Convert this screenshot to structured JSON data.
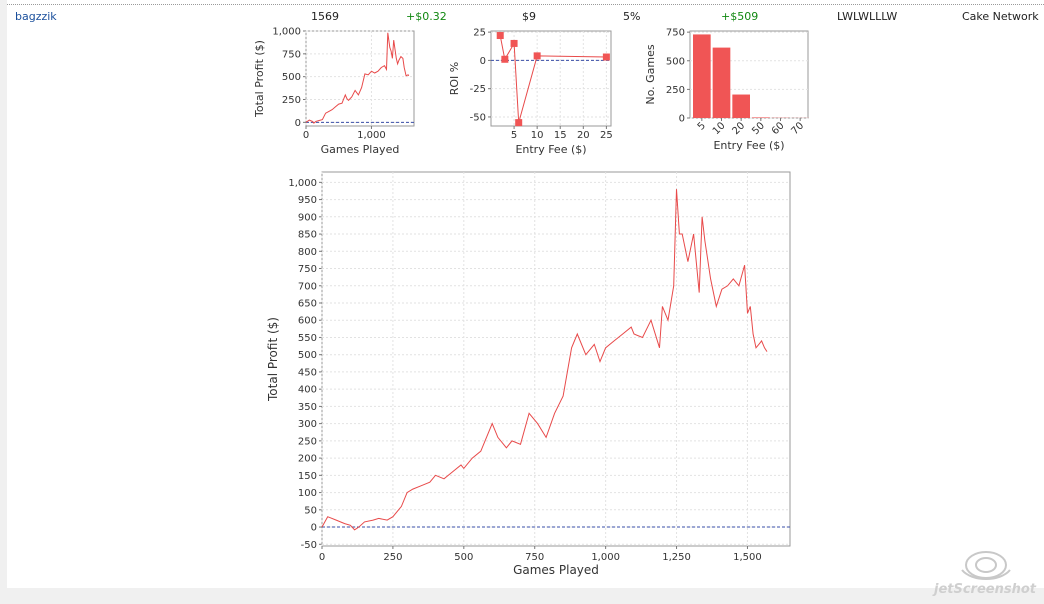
{
  "row": {
    "player": "bagzzik",
    "games": "1569",
    "avg_profit": "+$0.32",
    "avg_stake": "$9",
    "avg_roi": "5%",
    "total_profit": "+$509",
    "recent": "LWLWLLLW",
    "network": "Cake Network"
  },
  "watermark": "jetScreenshot",
  "chart_data": [
    {
      "id": "small-profit",
      "type": "line",
      "xlabel": "Games Played",
      "ylabel": "Total Profit ($)",
      "xlim": [
        0,
        1650
      ],
      "ylim": [
        -40,
        1000
      ],
      "xticks": [
        0,
        1000
      ],
      "xtick_labels": [
        "0",
        "1,000"
      ],
      "yticks": [
        0,
        250,
        500,
        750,
        1000
      ],
      "ytick_labels": [
        "0",
        "250",
        "500",
        "750",
        "1,000"
      ],
      "zero_line": 0,
      "grid": true,
      "x": [
        0,
        50,
        100,
        120,
        150,
        200,
        250,
        300,
        350,
        400,
        450,
        500,
        550,
        600,
        625,
        650,
        700,
        750,
        800,
        850,
        900,
        950,
        1000,
        1050,
        1100,
        1150,
        1200,
        1230,
        1250,
        1280,
        1300,
        1320,
        1340,
        1360,
        1380,
        1400,
        1420,
        1450,
        1480,
        1500,
        1530,
        1560,
        1569
      ],
      "y": [
        0,
        25,
        10,
        -8,
        10,
        20,
        30,
        100,
        120,
        140,
        170,
        200,
        210,
        300,
        260,
        240,
        280,
        350,
        300,
        380,
        530,
        520,
        560,
        540,
        560,
        600,
        620,
        580,
        980,
        820,
        780,
        700,
        900,
        800,
        700,
        640,
        680,
        720,
        700,
        600,
        510,
        520,
        509
      ]
    },
    {
      "id": "small-roi",
      "type": "line",
      "xlabel": "Entry Fee ($)",
      "ylabel": "ROI %",
      "xlim": [
        0,
        26
      ],
      "ylim": [
        -58,
        26
      ],
      "xticks": [
        5,
        10,
        15,
        20,
        25
      ],
      "xtick_labels": [
        "5",
        "10",
        "15",
        "20",
        "25"
      ],
      "yticks": [
        -50,
        -25,
        0,
        25
      ],
      "ytick_labels": [
        "-50",
        "-25",
        "0",
        "25"
      ],
      "zero_line": 0,
      "grid": true,
      "x": [
        2,
        3,
        5,
        6,
        10,
        25
      ],
      "y": [
        22,
        1,
        15,
        -55,
        4,
        3
      ]
    },
    {
      "id": "small-games",
      "type": "bar",
      "xlabel": "Entry Fee ($)",
      "ylabel": "No. Games",
      "categories": [
        "5",
        "10",
        "20",
        "50",
        "60",
        "70"
      ],
      "values": [
        730,
        615,
        205,
        5,
        2,
        1
      ],
      "ylim": [
        0,
        760
      ],
      "yticks": [
        0,
        250,
        500,
        750
      ],
      "ytick_labels": [
        "0",
        "250",
        "500",
        "750"
      ],
      "grid": true
    },
    {
      "id": "large-profit",
      "type": "line",
      "xlabel": "Games Played",
      "ylabel": "Total Profit ($)",
      "xlim": [
        0,
        1650
      ],
      "ylim": [
        -55,
        1030
      ],
      "xticks": [
        0,
        250,
        500,
        750,
        1000,
        1250,
        1500
      ],
      "xtick_labels": [
        "0",
        "250",
        "500",
        "750",
        "1,000",
        "1,250",
        "1,500"
      ],
      "yticks": [
        -50,
        0,
        50,
        100,
        150,
        200,
        250,
        300,
        350,
        400,
        450,
        500,
        550,
        600,
        650,
        700,
        750,
        800,
        850,
        900,
        950,
        1000
      ],
      "ytick_labels": [
        "-50",
        "0",
        "50",
        "100",
        "150",
        "200",
        "250",
        "300",
        "350",
        "400",
        "450",
        "500",
        "550",
        "600",
        "650",
        "700",
        "750",
        "800",
        "850",
        "900",
        "950",
        "1,000"
      ],
      "zero_line": 0,
      "grid": true,
      "x": [
        0,
        20,
        50,
        80,
        100,
        115,
        130,
        150,
        180,
        200,
        230,
        250,
        280,
        300,
        320,
        350,
        380,
        400,
        430,
        460,
        490,
        500,
        530,
        560,
        600,
        620,
        650,
        670,
        700,
        730,
        760,
        790,
        820,
        850,
        880,
        900,
        930,
        960,
        980,
        1000,
        1030,
        1060,
        1090,
        1100,
        1130,
        1160,
        1190,
        1200,
        1220,
        1240,
        1250,
        1260,
        1270,
        1290,
        1310,
        1330,
        1340,
        1350,
        1370,
        1390,
        1410,
        1430,
        1450,
        1470,
        1490,
        1500,
        1510,
        1520,
        1530,
        1540,
        1550,
        1560,
        1569
      ],
      "y": [
        0,
        30,
        20,
        10,
        5,
        -8,
        0,
        15,
        20,
        25,
        20,
        30,
        60,
        100,
        110,
        120,
        130,
        150,
        140,
        160,
        180,
        170,
        200,
        220,
        300,
        260,
        230,
        250,
        240,
        330,
        300,
        260,
        330,
        380,
        520,
        560,
        500,
        530,
        480,
        520,
        540,
        560,
        580,
        560,
        550,
        600,
        520,
        640,
        600,
        700,
        980,
        850,
        850,
        770,
        850,
        680,
        900,
        830,
        720,
        640,
        690,
        700,
        720,
        700,
        760,
        620,
        640,
        560,
        520,
        530,
        540,
        520,
        509
      ]
    }
  ]
}
